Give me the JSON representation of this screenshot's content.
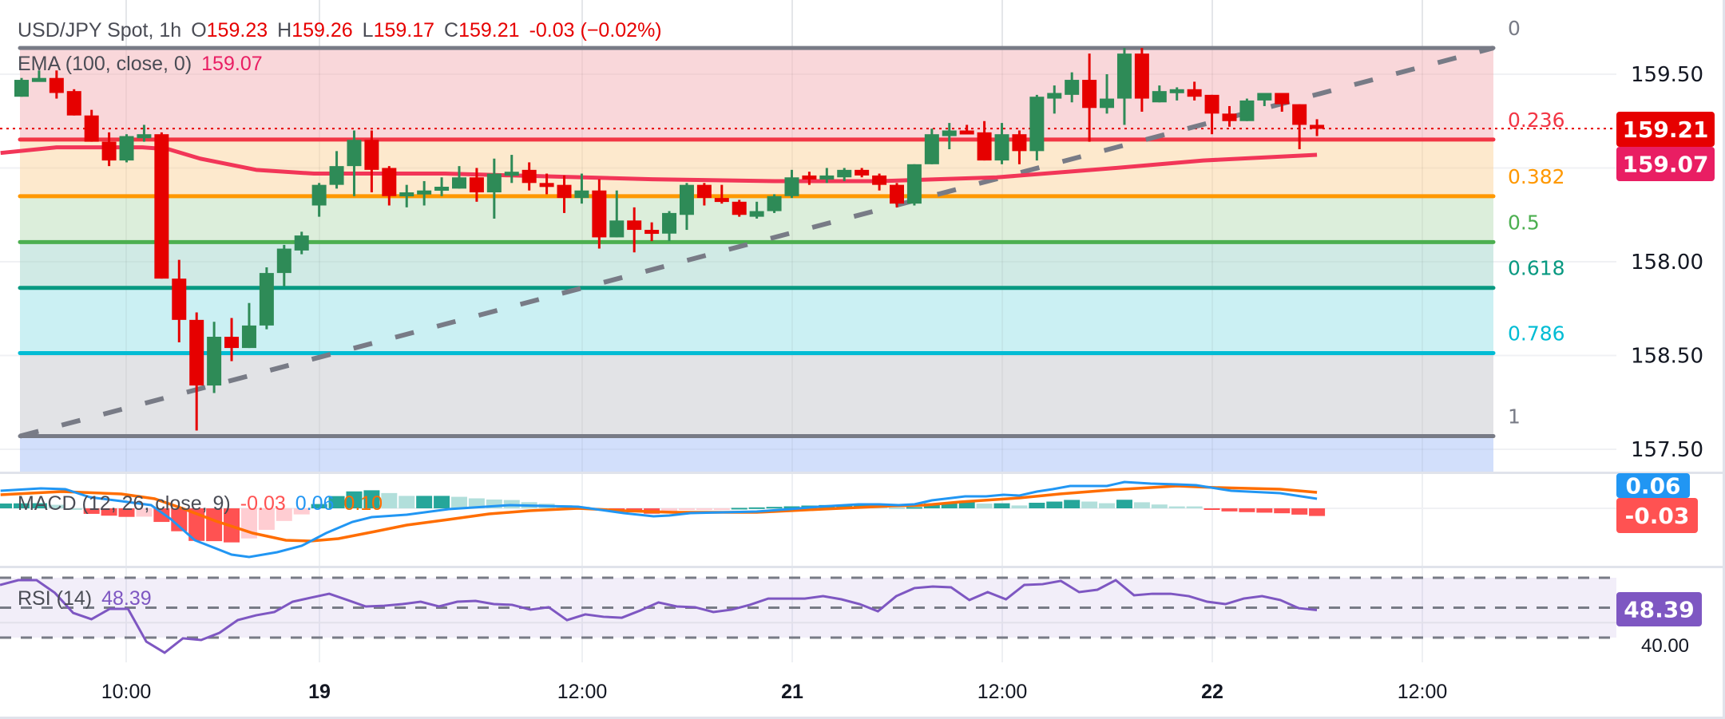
{
  "header": {
    "symbol": "USD/JPY Spot, 1h",
    "o_label": "O",
    "o": "159.23",
    "h_label": "H",
    "h": "159.26",
    "l_label": "L",
    "l": "159.17",
    "c_label": "C",
    "c": "159.21",
    "change": "-0.03 (−0.02%)"
  },
  "ema_legend": {
    "label": "EMA (100, close, 0)",
    "value": "159.07"
  },
  "macd_legend": {
    "label": "MACD (12, 26, close, 9)",
    "hist": "-0.03",
    "macd": "0.06",
    "signal": "0.10"
  },
  "rsi_legend": {
    "label": "RSI (14)",
    "value": "48.39"
  },
  "colors": {
    "up": "#2e8b57",
    "down": "#e60000",
    "ema": "#f23658",
    "macd": "#2196f3",
    "signal": "#ff6d00",
    "rsi": "#7e57c2",
    "hist_up_strong": "#26a69a",
    "hist_up_weak": "#b2dfdb",
    "hist_down_strong": "#ff5252",
    "hist_down_weak": "#ffcdd2",
    "trendline": "#787b86"
  },
  "chart_data": [
    {
      "type": "candlestick",
      "title": "USD/JPY Spot, 1h",
      "ylim": [
        157.3,
        159.8
      ],
      "y_ticks": [
        "159.50",
        "158.50",
        "158.00",
        "157.50"
      ],
      "x_ticks": [
        "10:00",
        "19",
        "12:00",
        "21",
        "12:00",
        "22",
        "12:00"
      ],
      "grid": true,
      "last_price": {
        "value": "159.21",
        "color": "#e60000"
      },
      "ema_price": {
        "value": "159.07",
        "color": "#e91e63"
      },
      "ohlc": [
        [
          159.38,
          159.48,
          159.38,
          159.47
        ],
        [
          159.47,
          159.52,
          159.46,
          159.48
        ],
        [
          159.48,
          159.52,
          159.37,
          159.4
        ],
        [
          159.41,
          159.42,
          159.28,
          159.28
        ],
        [
          159.28,
          159.31,
          159.14,
          159.14
        ],
        [
          159.14,
          159.19,
          159.01,
          159.04
        ],
        [
          159.04,
          159.18,
          159.03,
          159.17
        ],
        [
          159.17,
          159.23,
          159.14,
          159.18
        ],
        [
          159.18,
          159.19,
          158.41,
          158.41
        ],
        [
          158.41,
          158.51,
          158.07,
          158.19
        ],
        [
          158.19,
          158.23,
          157.6,
          157.84
        ],
        [
          157.84,
          158.18,
          157.8,
          158.1
        ],
        [
          158.1,
          158.2,
          157.97,
          158.04
        ],
        [
          158.04,
          158.28,
          158.04,
          158.16
        ],
        [
          158.16,
          158.47,
          158.14,
          158.44
        ],
        [
          158.44,
          158.59,
          158.37,
          158.57
        ],
        [
          158.56,
          158.66,
          158.54,
          158.64
        ],
        [
          158.8,
          158.92,
          158.74,
          158.91
        ],
        [
          158.91,
          159.09,
          158.89,
          159.01
        ],
        [
          159.01,
          159.2,
          158.85,
          159.15
        ],
        [
          159.15,
          159.2,
          158.87,
          158.99
        ],
        [
          159.0,
          159.01,
          158.8,
          158.85
        ],
        [
          158.86,
          158.91,
          158.79,
          158.87
        ],
        [
          158.87,
          158.93,
          158.8,
          158.88
        ],
        [
          158.88,
          158.95,
          158.85,
          158.9
        ],
        [
          158.89,
          159.01,
          158.89,
          158.95
        ],
        [
          158.95,
          159.0,
          158.82,
          158.87
        ],
        [
          158.87,
          159.05,
          158.73,
          158.97
        ],
        [
          158.97,
          159.07,
          158.92,
          158.98
        ],
        [
          158.99,
          159.03,
          158.88,
          158.92
        ],
        [
          158.92,
          158.97,
          158.86,
          158.91
        ],
        [
          158.91,
          158.96,
          158.76,
          158.84
        ],
        [
          158.84,
          158.97,
          158.81,
          158.88
        ],
        [
          158.88,
          158.94,
          158.57,
          158.63
        ],
        [
          158.63,
          158.88,
          158.63,
          158.72
        ],
        [
          158.72,
          158.79,
          158.55,
          158.67
        ],
        [
          158.67,
          158.71,
          158.61,
          158.65
        ],
        [
          158.65,
          158.77,
          158.61,
          158.76
        ],
        [
          158.75,
          158.92,
          158.67,
          158.91
        ],
        [
          158.91,
          158.92,
          158.8,
          158.84
        ],
        [
          158.84,
          158.91,
          158.81,
          158.82
        ],
        [
          158.82,
          158.83,
          158.74,
          158.75
        ],
        [
          158.74,
          158.82,
          158.73,
          158.77
        ],
        [
          158.77,
          158.86,
          158.76,
          158.85
        ],
        [
          158.85,
          158.99,
          158.84,
          158.95
        ],
        [
          158.96,
          158.98,
          158.91,
          158.95
        ],
        [
          158.95,
          159.0,
          158.92,
          158.96
        ],
        [
          158.95,
          159.0,
          158.93,
          158.99
        ],
        [
          158.99,
          159.0,
          158.95,
          158.96
        ],
        [
          158.96,
          158.97,
          158.88,
          158.91
        ],
        [
          158.91,
          158.92,
          158.79,
          158.81
        ],
        [
          158.81,
          159.02,
          158.8,
          159.02
        ],
        [
          159.02,
          159.21,
          159.02,
          159.18
        ],
        [
          159.17,
          159.24,
          159.1,
          159.2
        ],
        [
          159.2,
          159.23,
          159.19,
          159.19
        ],
        [
          159.19,
          159.25,
          159.04,
          159.04
        ],
        [
          159.04,
          159.24,
          159.02,
          159.18
        ],
        [
          159.18,
          159.2,
          159.02,
          159.09
        ],
        [
          159.09,
          159.39,
          159.04,
          159.38
        ],
        [
          159.37,
          159.44,
          159.29,
          159.4
        ],
        [
          159.39,
          159.51,
          159.35,
          159.47
        ],
        [
          159.47,
          159.61,
          159.14,
          159.32
        ],
        [
          159.32,
          159.5,
          159.29,
          159.37
        ],
        [
          159.37,
          159.64,
          159.23,
          159.61
        ],
        [
          159.61,
          159.64,
          159.3,
          159.37
        ],
        [
          159.35,
          159.44,
          159.35,
          159.41
        ],
        [
          159.4,
          159.43,
          159.36,
          159.42
        ],
        [
          159.42,
          159.46,
          159.36,
          159.38
        ],
        [
          159.39,
          159.39,
          159.18,
          159.29
        ],
        [
          159.29,
          159.33,
          159.22,
          159.25
        ],
        [
          159.25,
          159.37,
          159.25,
          159.36
        ],
        [
          159.36,
          159.4,
          159.33,
          159.4
        ],
        [
          159.4,
          159.4,
          159.3,
          159.34
        ],
        [
          159.34,
          159.34,
          159.1,
          159.23
        ],
        [
          159.23,
          159.26,
          159.17,
          159.21
        ]
      ],
      "ema": [
        [
          -1.2,
          159.08
        ],
        [
          2,
          159.11
        ],
        [
          6.9,
          159.11
        ],
        [
          8.4,
          159.1
        ],
        [
          10.2,
          159.05
        ],
        [
          13.4,
          158.99
        ],
        [
          16.7,
          158.97
        ],
        [
          24.2,
          158.97
        ],
        [
          36,
          158.94
        ],
        [
          43,
          158.93
        ],
        [
          49,
          158.93
        ],
        [
          55.7,
          158.95
        ],
        [
          62.5,
          159.0
        ],
        [
          67.5,
          159.04
        ],
        [
          74,
          159.07
        ]
      ],
      "trendline": {
        "from": 157.57,
        "to": 159.64
      },
      "fibonacci": {
        "high": 159.64,
        "low": 157.57,
        "levels": [
          {
            "label": "0",
            "ratio": 0,
            "color": "#787b86",
            "fill": "#f9d7da"
          },
          {
            "label": "0.236",
            "ratio": 0.236,
            "color": "#f23645",
            "fill": "#f9d7da"
          },
          {
            "label": "0.382",
            "ratio": 0.382,
            "color": "#ff9800",
            "fill": "#fde9cd"
          },
          {
            "label": "0.5",
            "ratio": 0.5,
            "color": "#4caf50",
            "fill": "#dceedb"
          },
          {
            "label": "0.618",
            "ratio": 0.618,
            "color": "#089981",
            "fill": "#d0eae5"
          },
          {
            "label": "0.786",
            "ratio": 0.786,
            "color": "#00bcd4",
            "fill": "#cbf0f3"
          },
          {
            "label": "1",
            "ratio": 1,
            "color": "#787b86",
            "fill": "#e2e3e6"
          }
        ],
        "extension_fill": "#d2dffb"
      }
    },
    {
      "type": "line",
      "title": "MACD (12, 26, close, 9)",
      "macd_box": "0.06",
      "hist_box": "-0.03",
      "macd": [
        [
          -1.2,
          0.11
        ],
        [
          1.1,
          0.125
        ],
        [
          2.5,
          0.12
        ],
        [
          3.9,
          0.07
        ],
        [
          5.7,
          0.045
        ],
        [
          7.4,
          0.02
        ],
        [
          8.5,
          -0.065
        ],
        [
          9.9,
          -0.2
        ],
        [
          12,
          -0.29
        ],
        [
          13,
          -0.305
        ],
        [
          14.6,
          -0.275
        ],
        [
          16,
          -0.235
        ],
        [
          17.4,
          -0.155
        ],
        [
          18.9,
          -0.085
        ],
        [
          20,
          -0.055
        ],
        [
          22,
          -0.04
        ],
        [
          24.4,
          -0.005
        ],
        [
          27.9,
          0.02
        ],
        [
          31.8,
          0.01
        ],
        [
          34.4,
          -0.03
        ],
        [
          36.1,
          -0.05
        ],
        [
          37,
          -0.045
        ],
        [
          38.2,
          -0.03
        ],
        [
          42,
          -0.02
        ],
        [
          43.9,
          -0.005
        ],
        [
          45.5,
          0.01
        ],
        [
          47.8,
          0.025
        ],
        [
          49,
          0.025
        ],
        [
          50.1,
          0.02
        ],
        [
          51,
          0.025
        ],
        [
          52,
          0.05
        ],
        [
          53.9,
          0.075
        ],
        [
          55.1,
          0.075
        ],
        [
          56.1,
          0.085
        ],
        [
          57,
          0.08
        ],
        [
          58,
          0.105
        ],
        [
          58.9,
          0.12
        ],
        [
          59.9,
          0.14
        ],
        [
          62,
          0.14
        ],
        [
          63,
          0.165
        ],
        [
          64.5,
          0.155
        ],
        [
          66,
          0.15
        ],
        [
          67.1,
          0.145
        ],
        [
          69.1,
          0.11
        ],
        [
          71.9,
          0.095
        ],
        [
          74,
          0.06
        ]
      ],
      "signal": [
        [
          -1.2,
          0.085
        ],
        [
          2.3,
          0.105
        ],
        [
          5.7,
          0.09
        ],
        [
          7.6,
          0.06
        ],
        [
          9.3,
          -0.005
        ],
        [
          11.1,
          -0.08
        ],
        [
          13.2,
          -0.155
        ],
        [
          15.1,
          -0.2
        ],
        [
          16.5,
          -0.205
        ],
        [
          18.1,
          -0.19
        ],
        [
          20.2,
          -0.145
        ],
        [
          22,
          -0.105
        ],
        [
          24.4,
          -0.07
        ],
        [
          26.7,
          -0.035
        ],
        [
          29,
          -0.015
        ],
        [
          31.8,
          0
        ],
        [
          34.4,
          -0.015
        ],
        [
          37.2,
          -0.025
        ],
        [
          42,
          -0.025
        ],
        [
          43.9,
          -0.015
        ],
        [
          45.8,
          -0.005
        ],
        [
          49.7,
          0.015
        ],
        [
          51.6,
          0.02
        ],
        [
          53.6,
          0.04
        ],
        [
          57,
          0.065
        ],
        [
          59.3,
          0.09
        ],
        [
          62.2,
          0.115
        ],
        [
          64.5,
          0.13
        ],
        [
          66,
          0.14
        ],
        [
          68.2,
          0.13
        ],
        [
          71.9,
          0.12
        ],
        [
          74,
          0.1
        ]
      ]
    },
    {
      "type": "line",
      "title": "RSI (14)",
      "ylim": [
        30,
        70
      ],
      "bands": [
        70,
        50,
        30
      ],
      "hidden_tick": "40.00",
      "value_box": "48.39",
      "values": [
        65.2,
        68.4,
        68.4,
        59.9,
        46.5,
        42.3,
        49.2,
        49.2,
        27.3,
        19.9,
        29.5,
        28.4,
        33.2,
        41.7,
        44.9,
        47.1,
        54.0,
        56.7,
        59.3,
        55.1,
        50.8,
        51.3,
        52.4,
        54.0,
        50.8,
        54.0,
        54.5,
        52.4,
        51.9,
        48.7,
        50.3,
        41.7,
        45.5,
        43.9,
        43.3,
        48.1,
        53.5,
        50.8,
        50.3,
        47.1,
        48.7,
        51.9,
        56.1,
        56.1,
        56.1,
        57.7,
        55.6,
        52.4,
        47.6,
        57.7,
        63.1,
        64.1,
        63.6,
        55.1,
        60.4,
        55.6,
        65.2,
        65.7,
        67.9,
        60.4,
        62.0,
        68.4,
        58.3,
        59.3,
        59.3,
        57.7,
        54.0,
        52.4,
        56.1,
        57.7,
        55.1,
        49.7,
        48.39
      ]
    }
  ]
}
